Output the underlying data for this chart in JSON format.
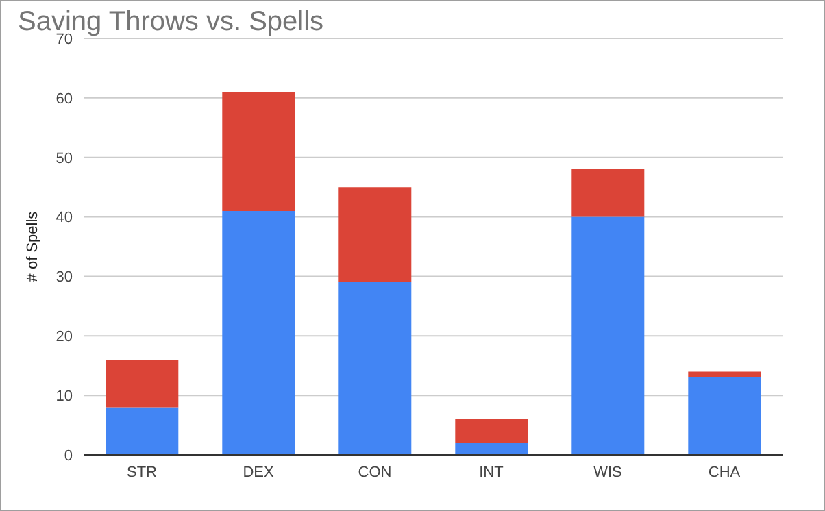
{
  "chart_data": {
    "type": "bar",
    "title": "Saving Throws vs. Spells",
    "ylabel": "# of Spells",
    "categories": [
      "STR",
      "DEX",
      "CON",
      "INT",
      "WIS",
      "CHA"
    ],
    "stacked": true,
    "series": [
      {
        "color": "#4285f4",
        "values": [
          8,
          41,
          29,
          2,
          40,
          13
        ]
      },
      {
        "color": "#db4437",
        "values": [
          8,
          20,
          16,
          4,
          8,
          1
        ]
      }
    ],
    "ylim": [
      0,
      70
    ],
    "yticks": [
      0,
      10,
      20,
      30,
      40,
      50,
      60,
      70
    ],
    "grid": "y"
  }
}
